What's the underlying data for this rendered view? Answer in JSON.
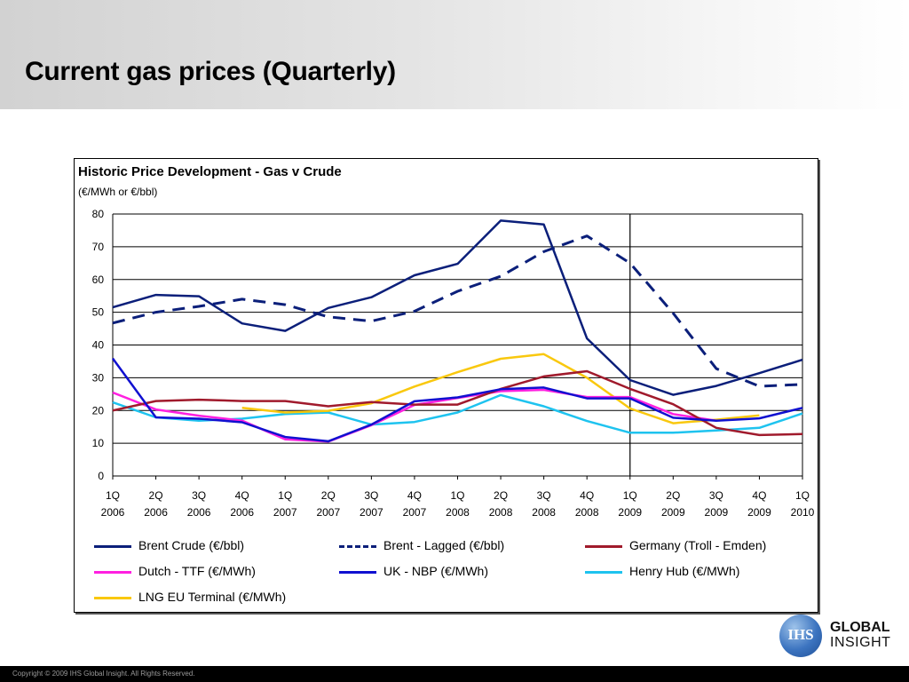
{
  "slide": {
    "title": "Current gas prices (Quarterly)",
    "footer": "Copyright © 2009 IHS Global Insight. All Rights Reserved."
  },
  "logo": {
    "badge": "IHS",
    "line1": "GLOBAL",
    "line2": "INSIGHT"
  },
  "chart_data": {
    "type": "line",
    "title": "Historic Price Development - Gas v Crude",
    "subtitle": "(€/MWh or €/bbl)",
    "xlabel": "",
    "ylabel": "",
    "ylim": [
      0,
      80
    ],
    "yticks": [
      "0",
      "10",
      "20",
      "30",
      "40",
      "50",
      "60",
      "70",
      "80"
    ],
    "grid": true,
    "categories": [
      "1Q 2006",
      "2Q 2006",
      "3Q 2006",
      "4Q 2006",
      "1Q 2007",
      "2Q 2007",
      "3Q 2007",
      "4Q 2007",
      "1Q 2008",
      "2Q 2008",
      "3Q 2008",
      "4Q 2008",
      "1Q 2009",
      "2Q 2009",
      "3Q 2009",
      "4Q 2009",
      "1Q 2010"
    ],
    "tick_labels": [
      [
        "1Q",
        "2006"
      ],
      [
        "2Q",
        "2006"
      ],
      [
        "3Q",
        "2006"
      ],
      [
        "4Q",
        "2006"
      ],
      [
        "1Q",
        "2007"
      ],
      [
        "2Q",
        "2007"
      ],
      [
        "3Q",
        "2007"
      ],
      [
        "4Q",
        "2007"
      ],
      [
        "1Q",
        "2008"
      ],
      [
        "2Q",
        "2008"
      ],
      [
        "3Q",
        "2008"
      ],
      [
        "4Q",
        "2008"
      ],
      [
        "1Q",
        "2009"
      ],
      [
        "2Q",
        "2009"
      ],
      [
        "3Q",
        "2009"
      ],
      [
        "4Q",
        "2009"
      ],
      [
        "1Q",
        "2010"
      ]
    ],
    "vertical_marker_at": "1Q 2009",
    "legend_position": "bottom",
    "series": [
      {
        "name": "Brent Crude (€/bbl)",
        "color": "#0b1f7a",
        "dash": "solid",
        "values": [
          51.5,
          55.3,
          54.9,
          46.6,
          44.3,
          51.3,
          54.6,
          61.3,
          64.8,
          78.0,
          76.8,
          42.0,
          29.3,
          24.8,
          27.5,
          31.4,
          35.5
        ]
      },
      {
        "name": "Brent - Lagged (€/bbl)",
        "color": "#0b1f7a",
        "dash": "dashed",
        "values": [
          46.7,
          50.0,
          51.8,
          54.0,
          52.3,
          48.6,
          47.3,
          50.3,
          56.4,
          61.0,
          68.5,
          73.3,
          65.0,
          49.7,
          32.8,
          27.4,
          28.0
        ]
      },
      {
        "name": "Germany (Troll - Emden)",
        "color": "#a01a2c",
        "dash": "solid",
        "values": [
          20.0,
          22.9,
          23.3,
          22.9,
          22.9,
          21.3,
          22.6,
          21.8,
          21.8,
          26.6,
          30.4,
          32.0,
          26.6,
          21.9,
          14.7,
          12.5,
          12.8
        ]
      },
      {
        "name": "Dutch - TTF (€/MWh)",
        "color": "#ff20e0",
        "dash": "solid",
        "values": [
          25.5,
          20.3,
          18.4,
          16.9,
          11.2,
          10.5,
          15.5,
          21.7,
          23.8,
          25.9,
          26.3,
          24.1,
          24.1,
          18.9,
          16.9,
          null,
          null
        ]
      },
      {
        "name": "UK - NBP (€/MWh)",
        "color": "#1010d0",
        "dash": "solid",
        "values": [
          35.9,
          17.9,
          17.5,
          16.4,
          11.9,
          10.6,
          15.7,
          22.8,
          24.0,
          26.5,
          27.0,
          23.7,
          23.7,
          17.8,
          16.9,
          17.6,
          20.8
        ]
      },
      {
        "name": "Henry Hub (€/MWh)",
        "color": "#1ec3ef",
        "dash": "solid",
        "values": [
          22.5,
          17.9,
          16.9,
          17.5,
          18.9,
          19.4,
          15.7,
          16.5,
          19.4,
          24.7,
          21.3,
          16.8,
          13.2,
          13.2,
          13.9,
          14.7,
          19.1
        ]
      },
      {
        "name": "LNG EU Terminal (€/MWh)",
        "color": "#f9c80e",
        "dash": "solid",
        "values": [
          null,
          null,
          null,
          20.8,
          19.4,
          19.9,
          22.2,
          27.3,
          31.7,
          35.8,
          37.2,
          30.0,
          20.6,
          16.1,
          17.2,
          18.5,
          null
        ]
      }
    ]
  }
}
